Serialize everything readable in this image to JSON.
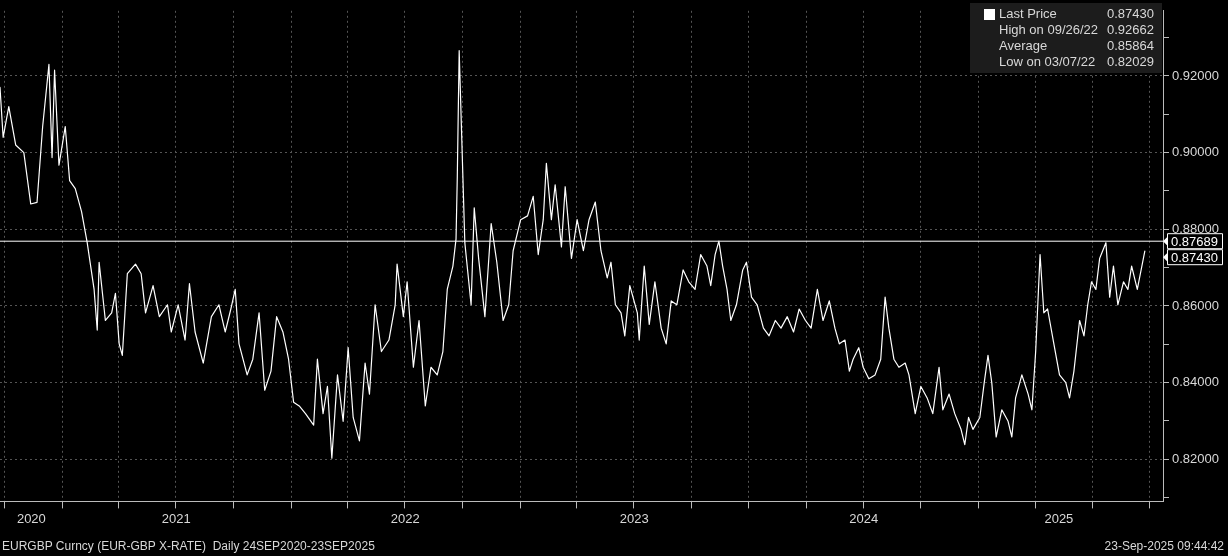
{
  "chart_data": {
    "type": "line",
    "legend": "top right",
    "grid": true,
    "xlim": [
      "2020-09-24",
      "2025-10-22"
    ],
    "ylim": [
      0.809,
      0.937
    ],
    "xticks": [
      {
        "value": "2020-10-01",
        "label": null
      },
      {
        "value": "2020-11-13",
        "label": "2020"
      },
      {
        "value": "2021-01-01",
        "label": null
      },
      {
        "value": "2021-04-01",
        "label": null
      },
      {
        "value": "2021-07-01",
        "label": null
      },
      {
        "value": "2021-07-02",
        "label": "2021"
      },
      {
        "value": "2021-10-01",
        "label": null
      },
      {
        "value": "2022-01-01",
        "label": null
      },
      {
        "value": "2022-04-01",
        "label": null
      },
      {
        "value": "2022-07-01",
        "label": null
      },
      {
        "value": "2022-07-02",
        "label": "2022"
      },
      {
        "value": "2022-10-01",
        "label": null
      },
      {
        "value": "2023-01-01",
        "label": null
      },
      {
        "value": "2023-04-01",
        "label": null
      },
      {
        "value": "2023-07-01",
        "label": null
      },
      {
        "value": "2023-07-02",
        "label": "2023"
      },
      {
        "value": "2023-10-01",
        "label": null
      },
      {
        "value": "2024-01-01",
        "label": null
      },
      {
        "value": "2024-04-01",
        "label": null
      },
      {
        "value": "2024-07-01",
        "label": null
      },
      {
        "value": "2024-07-02",
        "label": "2024"
      },
      {
        "value": "2024-10-01",
        "label": null
      },
      {
        "value": "2025-01-01",
        "label": null
      },
      {
        "value": "2025-04-01",
        "label": null
      },
      {
        "value": "2025-05-09",
        "label": "2025"
      },
      {
        "value": "2025-07-01",
        "label": null
      },
      {
        "value": "2025-10-01",
        "label": null
      }
    ],
    "yticks": [
      {
        "value": 0.81,
        "label": null
      },
      {
        "value": 0.82,
        "label": "0.82000"
      },
      {
        "value": 0.83,
        "label": null
      },
      {
        "value": 0.84,
        "label": "0.84000"
      },
      {
        "value": 0.85,
        "label": null
      },
      {
        "value": 0.86,
        "label": "0.86000"
      },
      {
        "value": 0.87,
        "label": null
      },
      {
        "value": 0.88,
        "label": "0.88000"
      },
      {
        "value": 0.89,
        "label": null
      },
      {
        "value": 0.9,
        "label": "0.90000"
      },
      {
        "value": 0.91,
        "label": null
      },
      {
        "value": 0.92,
        "label": "0.92000"
      },
      {
        "value": 0.93,
        "label": null
      }
    ],
    "ref_lines": [
      {
        "axis": "y",
        "value": 0.87689,
        "label": "0.87689",
        "color": "#ffffff"
      }
    ],
    "annotations": [
      "0.87430",
      "High on 09/26/22",
      "0.92662",
      "Average",
      "0.85864",
      "Low on 03/07/22",
      "0.82029",
      "EURGBP Curncy (EUR-GBP X-RATE)  Daily 24SEP2020-23SEP2025",
      "23-Sep-2025 09:44:42",
      {
        "text": "0.87430",
        "x": "2025-09-23",
        "y": 0.8743
      }
    ],
    "x": [
      "2020-09-24",
      "2020-09-29",
      "2020-10-08",
      "2020-10-19",
      "2020-11-01",
      "2020-11-12",
      "2020-11-22",
      "2020-12-01",
      "2020-12-11",
      "2020-12-16",
      "2020-12-20",
      "2020-12-27",
      "2021-01-06",
      "2021-01-13",
      "2021-01-22",
      "2021-02-01",
      "2021-02-10",
      "2021-02-21",
      "2021-02-26",
      "2021-03-01",
      "2021-03-11",
      "2021-03-21",
      "2021-03-27",
      "2021-04-02",
      "2021-04-07",
      "2021-04-15",
      "2021-04-28",
      "2021-05-07",
      "2021-05-14",
      "2021-05-26",
      "2021-06-05",
      "2021-06-18",
      "2021-06-24",
      "2021-07-05",
      "2021-07-16",
      "2021-07-23",
      "2021-08-01",
      "2021-08-14",
      "2021-08-27",
      "2021-09-08",
      "2021-09-18",
      "2021-09-27",
      "2021-10-04",
      "2021-10-10",
      "2021-10-23",
      "2021-11-01",
      "2021-11-11",
      "2021-11-20",
      "2021-11-30",
      "2021-12-09",
      "2021-12-19",
      "2021-12-28",
      "2022-01-05",
      "2022-01-14",
      "2022-01-24",
      "2022-02-06",
      "2022-02-12",
      "2022-02-21",
      "2022-02-28",
      "2022-03-07",
      "2022-03-16",
      "2022-03-25",
      "2022-04-02",
      "2022-04-10",
      "2022-04-20",
      "2022-04-29",
      "2022-05-06",
      "2022-05-15",
      "2022-05-25",
      "2022-06-06",
      "2022-06-16",
      "2022-06-19",
      "2022-06-29",
      "2022-07-05",
      "2022-07-15",
      "2022-07-24",
      "2022-08-03",
      "2022-08-12",
      "2022-08-22",
      "2022-08-31",
      "2022-09-07",
      "2022-09-16",
      "2022-09-21",
      "2022-09-23",
      "2022-09-26",
      "2022-10-05",
      "2022-10-15",
      "2022-10-20",
      "2022-10-27",
      "2022-11-06",
      "2022-11-16",
      "2022-11-25",
      "2022-12-05",
      "2022-12-14",
      "2022-12-21",
      "2023-01-02",
      "2023-01-13",
      "2023-01-22",
      "2023-01-30",
      "2023-02-07",
      "2023-02-12",
      "2023-02-20",
      "2023-02-26",
      "2023-03-08",
      "2023-03-14",
      "2023-03-24",
      "2023-04-02",
      "2023-04-12",
      "2023-04-21",
      "2023-05-01",
      "2023-05-10",
      "2023-05-20",
      "2023-05-26",
      "2023-06-02",
      "2023-06-11",
      "2023-06-17",
      "2023-06-25",
      "2023-07-07",
      "2023-07-10",
      "2023-07-18",
      "2023-07-26",
      "2023-08-04",
      "2023-08-14",
      "2023-08-22",
      "2023-08-30",
      "2023-09-08",
      "2023-09-18",
      "2023-09-27",
      "2023-10-07",
      "2023-10-16",
      "2023-10-26",
      "2023-11-01",
      "2023-11-08",
      "2023-11-14",
      "2023-11-20",
      "2023-11-27",
      "2023-12-03",
      "2023-12-12",
      "2023-12-22",
      "2023-12-28",
      "2024-01-05",
      "2024-01-14",
      "2024-01-24",
      "2024-02-02",
      "2024-02-12",
      "2024-02-21",
      "2024-03-02",
      "2024-03-12",
      "2024-03-21",
      "2024-03-31",
      "2024-04-09",
      "2024-04-19",
      "2024-04-28",
      "2024-05-08",
      "2024-05-17",
      "2024-05-24",
      "2024-06-02",
      "2024-06-09",
      "2024-06-15",
      "2024-06-24",
      "2024-07-01",
      "2024-07-10",
      "2024-07-20",
      "2024-07-29",
      "2024-08-05",
      "2024-08-11",
      "2024-08-19",
      "2024-08-27",
      "2024-09-06",
      "2024-09-12",
      "2024-09-22",
      "2024-10-01",
      "2024-10-11",
      "2024-10-20",
      "2024-10-30",
      "2024-11-05",
      "2024-11-15",
      "2024-11-24",
      "2024-12-04",
      "2024-12-10",
      "2024-12-16",
      "2024-12-23",
      "2025-01-03",
      "2025-01-10",
      "2025-01-16",
      "2025-01-22",
      "2025-01-29",
      "2025-02-07",
      "2025-02-17",
      "2025-02-23",
      "2025-03-01",
      "2025-03-11",
      "2025-03-21",
      "2025-03-27",
      "2025-04-02",
      "2025-04-09",
      "2025-04-15",
      "2025-04-21",
      "2025-05-01",
      "2025-05-10",
      "2025-05-20",
      "2025-05-26",
      "2025-06-02",
      "2025-06-11",
      "2025-06-18",
      "2025-06-24",
      "2025-06-30",
      "2025-07-07",
      "2025-07-13",
      "2025-07-23",
      "2025-07-29",
      "2025-08-04",
      "2025-08-11",
      "2025-08-20",
      "2025-08-27",
      "2025-09-02",
      "2025-09-11",
      "2025-09-23"
    ],
    "series": [
      {
        "name": "Last Price",
        "color": "#ffffff",
        "values": [
          0.917,
          0.904,
          0.912,
          0.902,
          0.9,
          0.8866,
          0.887,
          0.9068,
          0.923,
          0.8987,
          0.9215,
          0.8967,
          0.9068,
          0.8927,
          0.8906,
          0.8846,
          0.8765,
          0.8643,
          0.8537,
          0.8714,
          0.8562,
          0.8582,
          0.8633,
          0.8501,
          0.8471,
          0.8684,
          0.8709,
          0.8684,
          0.8582,
          0.8653,
          0.8572,
          0.8603,
          0.8532,
          0.8603,
          0.8511,
          0.8658,
          0.8532,
          0.8451,
          0.8572,
          0.8603,
          0.8532,
          0.8592,
          0.8643,
          0.8501,
          0.842,
          0.8461,
          0.8582,
          0.838,
          0.843,
          0.8572,
          0.8532,
          0.8461,
          0.8349,
          0.8339,
          0.8319,
          0.8289,
          0.8461,
          0.8319,
          0.839,
          0.8203,
          0.842,
          0.8299,
          0.8491,
          0.8309,
          0.8248,
          0.8451,
          0.837,
          0.8603,
          0.8481,
          0.8511,
          0.8603,
          0.8709,
          0.8572,
          0.8663,
          0.844,
          0.8562,
          0.8339,
          0.844,
          0.842,
          0.8481,
          0.8643,
          0.8704,
          0.8775,
          0.8937,
          0.9266,
          0.8765,
          0.8603,
          0.8856,
          0.8724,
          0.8572,
          0.8815,
          0.8714,
          0.8562,
          0.8603,
          0.8744,
          0.8825,
          0.8835,
          0.8886,
          0.8734,
          0.8825,
          0.8972,
          0.8825,
          0.8916,
          0.8754,
          0.8911,
          0.8724,
          0.8825,
          0.8744,
          0.8825,
          0.8871,
          0.8744,
          0.8673,
          0.8714,
          0.8603,
          0.8582,
          0.8522,
          0.8653,
          0.8582,
          0.8511,
          0.8704,
          0.8552,
          0.8663,
          0.8542,
          0.8501,
          0.8613,
          0.8603,
          0.8694,
          0.8663,
          0.8643,
          0.8734,
          0.8704,
          0.8653,
          0.8734,
          0.8769,
          0.8704,
          0.8643,
          0.8562,
          0.8603,
          0.8694,
          0.8714,
          0.8623,
          0.8603,
          0.8542,
          0.8522,
          0.8562,
          0.8542,
          0.8572,
          0.8532,
          0.8592,
          0.8562,
          0.8542,
          0.8643,
          0.8562,
          0.8613,
          0.8542,
          0.8501,
          0.8511,
          0.843,
          0.8461,
          0.8491,
          0.844,
          0.841,
          0.842,
          0.8461,
          0.8623,
          0.8542,
          0.8461,
          0.844,
          0.8451,
          0.842,
          0.8319,
          0.839,
          0.836,
          0.8319,
          0.844,
          0.8329,
          0.837,
          0.8319,
          0.8278,
          0.8238,
          0.8309,
          0.8278,
          0.8309,
          0.84,
          0.8471,
          0.84,
          0.8258,
          0.8329,
          0.8299,
          0.8258,
          0.836,
          0.842,
          0.837,
          0.8329,
          0.8481,
          0.8734,
          0.8582,
          0.8592,
          0.8501,
          0.842,
          0.84,
          0.836,
          0.843,
          0.8562,
          0.8522,
          0.8603,
          0.8663,
          0.8643,
          0.8724,
          0.8765,
          0.8623,
          0.8704,
          0.8603,
          0.8663,
          0.8643,
          0.8704,
          0.8643,
          0.8743
        ]
      }
    ]
  }
}
